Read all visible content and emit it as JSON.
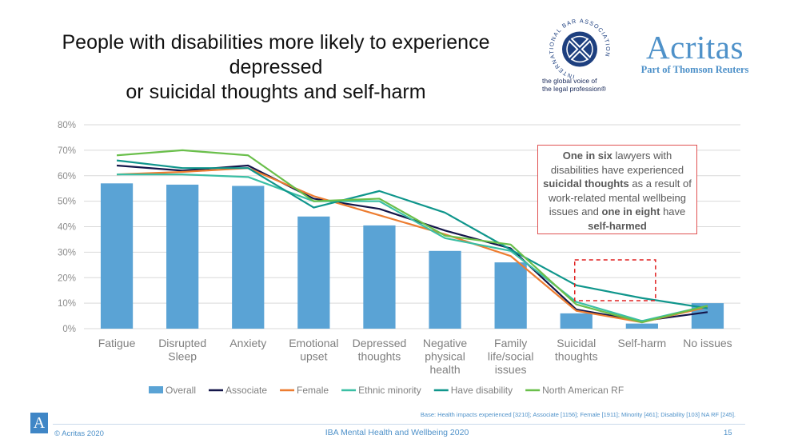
{
  "header": {
    "title_line1": "People with disabilities more likely to experience depressed",
    "title_line2": "or suicidal thoughts and self-harm"
  },
  "logos": {
    "iba_ring_text": "INTERNATIONAL BAR ASSOCIATION",
    "iba_tagline_line1": "the global voice of",
    "iba_tagline_line2": "the legal profession®",
    "acritas_name": "Acritas",
    "acritas_sub": "Part of Thomson Reuters"
  },
  "callout": {
    "t1": "One in six",
    "t2": " lawyers with disabilities have experienced ",
    "t3": "suicidal thoughts",
    "t4": " as a result of work-related mental wellbeing issues and ",
    "t5": "one in eight",
    "t6": " have ",
    "t7": "self-harmed"
  },
  "chart_data": {
    "type": "bar",
    "categories": [
      [
        "Fatigue"
      ],
      [
        "Disrupted",
        "Sleep"
      ],
      [
        "Anxiety"
      ],
      [
        "Emotional",
        "upset"
      ],
      [
        "Depressed",
        "thoughts"
      ],
      [
        "Negative",
        "physical",
        "health"
      ],
      [
        "Family",
        "life/social",
        "issues"
      ],
      [
        "Suicidal",
        "thoughts"
      ],
      [
        "Self-harm"
      ],
      [
        "No issues"
      ]
    ],
    "ylim": [
      0,
      80
    ],
    "yticks": [
      "0%",
      "10%",
      "20%",
      "30%",
      "40%",
      "50%",
      "60%",
      "70%",
      "80%"
    ],
    "bar_series": {
      "name": "Overall",
      "color": "#5aa3d5",
      "values": [
        57,
        56.5,
        56,
        44,
        40.5,
        30.5,
        26,
        6,
        2,
        10
      ]
    },
    "line_series": [
      {
        "name": "Associate",
        "color": "#14164a",
        "values": [
          64,
          62,
          64,
          51,
          47,
          38.5,
          31.5,
          7.5,
          3,
          6.5
        ]
      },
      {
        "name": "Female",
        "color": "#ed7d31",
        "values": [
          60.5,
          61.5,
          63,
          52,
          44.5,
          37,
          28.5,
          7,
          2.5,
          8.5
        ]
      },
      {
        "name": "Ethnic minority",
        "color": "#3bbfa5",
        "values": [
          60.5,
          60.5,
          59.5,
          50,
          50,
          35.5,
          30.5,
          10.5,
          3,
          9
        ]
      },
      {
        "name": "Have disability",
        "color": "#10968c",
        "values": [
          66,
          63,
          63,
          47.5,
          54,
          45.5,
          31,
          17,
          12,
          8
        ]
      },
      {
        "name": "North American RF",
        "color": "#6abf4b",
        "values": [
          68,
          70,
          68,
          50,
          51,
          36.5,
          33,
          9.5,
          2.5,
          9
        ]
      }
    ],
    "grid": true,
    "legend_position": "bottom",
    "highlight_box": {
      "from_category": 7,
      "to_category": 8,
      "y_range": [
        11,
        27
      ],
      "color": "#e02020"
    }
  },
  "footer": {
    "logo_letter": "A",
    "base": "Base: Health impacts experienced [3210]; Associate [1156]; Female [1911]; Minority [461]; Disability [103] NA RF [245].",
    "copyright": "© Acritas 2020",
    "center": "IBA Mental Health and Wellbeing 2020",
    "page": "15"
  }
}
